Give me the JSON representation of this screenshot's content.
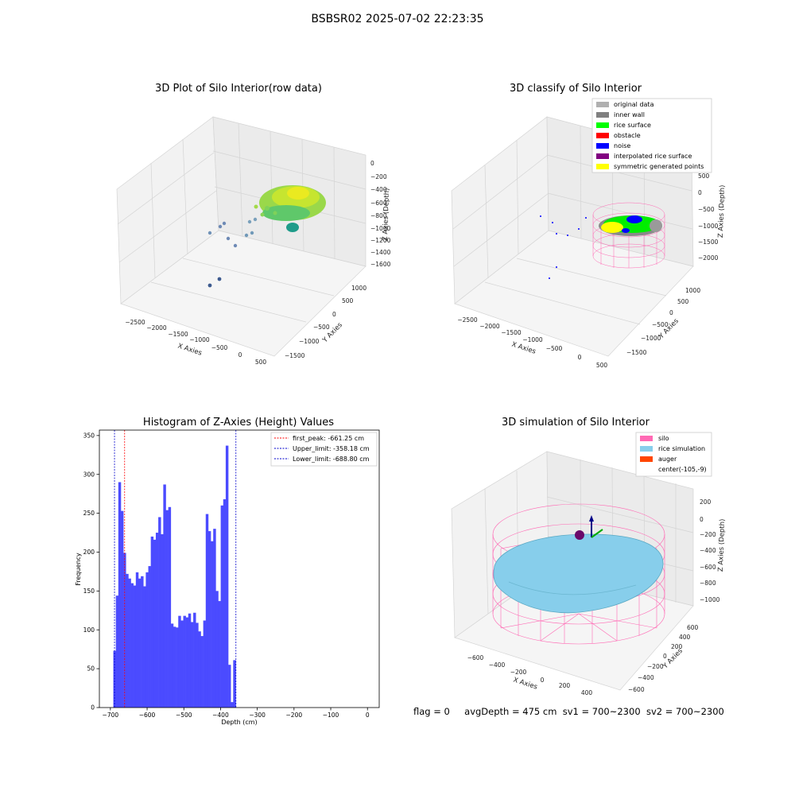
{
  "figure": {
    "suptitle": "BSBSR02 2025-07-02 22:23:35",
    "footer": {
      "flag": "flag = 0",
      "avg": "avgDepth = 475 cm",
      "sv1": "sv1 = 700~2300",
      "sv2": "sv2 = 700~2300"
    }
  },
  "colors": {
    "bar": "#4b4bff",
    "first_peak": "#ff0000",
    "limit": "#0000cc",
    "silo": "#ff69b4",
    "rice": "#87ceeb",
    "auger": "#ff4500",
    "inner_wall": "#808080",
    "rice_surface": "#00ff00",
    "obstacle": "#ff0000",
    "noise": "#0000ff",
    "interpolated": "#800080",
    "symmetric": "#ffff00",
    "original": "#b0b0b0"
  },
  "panel_raw": {
    "title": "3D Plot of Silo Interior(row data)",
    "x_ticks": [
      "−2500",
      "−2000",
      "−1500",
      "−1000",
      "−500",
      "0",
      "500"
    ],
    "y_ticks": [
      "−1500",
      "−1000",
      "−500",
      "0",
      "500",
      "1000"
    ],
    "z_ticks": [
      "0",
      "−200",
      "−400",
      "−600",
      "−800",
      "−1000",
      "−1200",
      "−1400",
      "−1600"
    ],
    "xlabel": "X Axies",
    "ylabel": "Y Axies",
    "zlabel": "Z Axies (Depth)"
  },
  "panel_classify": {
    "title": "3D classify of Silo Interior",
    "legend": [
      {
        "label": "original data",
        "color": "#b0b0b0"
      },
      {
        "label": "inner wall",
        "color": "#808080"
      },
      {
        "label": "rice surface",
        "color": "#00ff00"
      },
      {
        "label": "obstacle",
        "color": "#ff0000"
      },
      {
        "label": "noise",
        "color": "#0000ff"
      },
      {
        "label": "interpolated rice surface",
        "color": "#800080"
      },
      {
        "label": "symmetric generated points",
        "color": "#ffff00"
      }
    ],
    "x_ticks": [
      "−2500",
      "−2000",
      "−1500",
      "−1000",
      "−500",
      "0",
      "500"
    ],
    "y_ticks": [
      "−1500",
      "−1000",
      "−500",
      "0",
      "500",
      "1000"
    ],
    "z_ticks": [
      "500",
      "0",
      "−500",
      "−1000",
      "−1500",
      "−2000"
    ],
    "xlabel": "X Axies",
    "ylabel": "Y Axies",
    "zlabel": "Z Axies (Depth)"
  },
  "panel_sim": {
    "title": "3D simulation of Silo Interior",
    "legend": [
      {
        "label": "silo",
        "color": "#ff69b4"
      },
      {
        "label": "rice simulation",
        "color": "#87ceeb"
      },
      {
        "label": "auger",
        "color": "#ff4500"
      },
      {
        "label": "center(-105,-9)",
        "color": ""
      }
    ],
    "x_ticks": [
      "−600",
      "−400",
      "−200",
      "0",
      "200",
      "400"
    ],
    "y_ticks": [
      "−600",
      "−400",
      "−200",
      "0",
      "200",
      "400",
      "600"
    ],
    "z_ticks": [
      "200",
      "0",
      "−200",
      "−400",
      "−600",
      "−800",
      "−1000"
    ],
    "xlabel": "X Axies",
    "ylabel": "Y Axies",
    "zlabel": "Z Axies (Depth)"
  },
  "chart_data": [
    {
      "type": "histogram",
      "title": "Histogram of Z-Axies (Height) Values",
      "xlabel": "Depth (cm)",
      "ylabel": "Frequency",
      "xlim": [
        -730,
        32
      ],
      "ylim": [
        0,
        357
      ],
      "x_ticks": [
        -700,
        -600,
        -500,
        -400,
        -300,
        -200,
        -100,
        0
      ],
      "x_tick_labels": [
        "−700",
        "−600",
        "−500",
        "−400",
        "−300",
        "−200",
        "−100",
        "0"
      ],
      "y_ticks": [
        0,
        50,
        100,
        150,
        200,
        250,
        300,
        350
      ],
      "bin_start": -692,
      "bin_width": 6.8,
      "values": [
        73,
        144,
        290,
        253,
        199,
        172,
        166,
        160,
        157,
        174,
        166,
        169,
        156,
        174,
        182,
        220,
        216,
        225,
        245,
        223,
        287,
        254,
        258,
        108,
        104,
        103,
        118,
        112,
        118,
        116,
        121,
        110,
        122,
        109,
        98,
        92,
        112,
        249,
        227,
        214,
        230,
        150,
        137,
        260,
        268,
        337,
        55,
        7,
        61
      ],
      "vlines": [
        {
          "name": "first_peak",
          "label": "first_peak: -661.25 cm",
          "x": -661.25,
          "color": "#ff0000"
        },
        {
          "name": "upper_limit",
          "label": "Upper_limit: -358.18 cm",
          "x": -358.18,
          "color": "#0000cc"
        },
        {
          "name": "lower_limit",
          "label": "Lower_limit: -688.80 cm",
          "x": -688.8,
          "color": "#0000cc"
        }
      ],
      "legend_position": "top-right",
      "grid": false
    }
  ]
}
